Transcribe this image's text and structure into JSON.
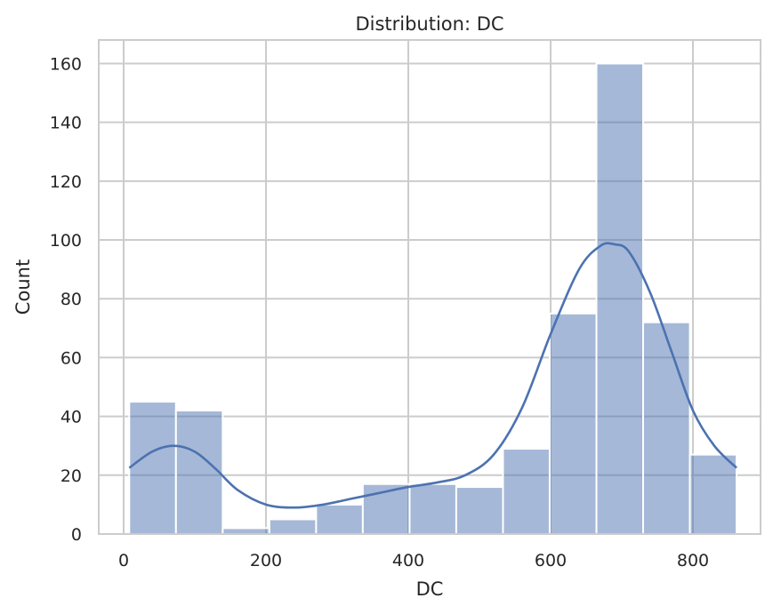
{
  "chart_data": {
    "type": "bar",
    "title": "Distribution: DC",
    "xlabel": "DC",
    "ylabel": "Count",
    "xlim": [
      -35,
      895
    ],
    "ylim": [
      0,
      168
    ],
    "xticks": [
      0,
      200,
      400,
      600,
      800
    ],
    "yticks": [
      0,
      20,
      40,
      60,
      80,
      100,
      120,
      140,
      160
    ],
    "grid": true,
    "bins": {
      "edges": [
        7.9,
        73.5,
        139.2,
        204.8,
        270.5,
        336.1,
        401.8,
        467.4,
        533.1,
        598.7,
        664.4,
        730.0,
        795.7,
        861.3
      ],
      "counts": [
        45,
        42,
        2,
        5,
        10,
        17,
        17,
        16,
        29,
        75,
        160,
        72,
        27
      ]
    },
    "kde": {
      "x": [
        7.9,
        40,
        70,
        100,
        130,
        160,
        200,
        240,
        280,
        320,
        360,
        400,
        440,
        480,
        520,
        560,
        600,
        640,
        670,
        690,
        710,
        740,
        770,
        800,
        830,
        861.3
      ],
      "y": [
        22.5,
        28,
        30,
        28,
        22,
        15,
        10,
        9,
        10,
        12,
        14,
        16,
        17.5,
        20,
        27,
        43,
        68,
        90,
        98,
        98.5,
        96,
        82,
        62,
        42,
        30,
        22.5
      ]
    },
    "colors": {
      "bar": "#4c72b0",
      "bar_opacity": 0.5,
      "kde": "#4c72b0"
    }
  }
}
